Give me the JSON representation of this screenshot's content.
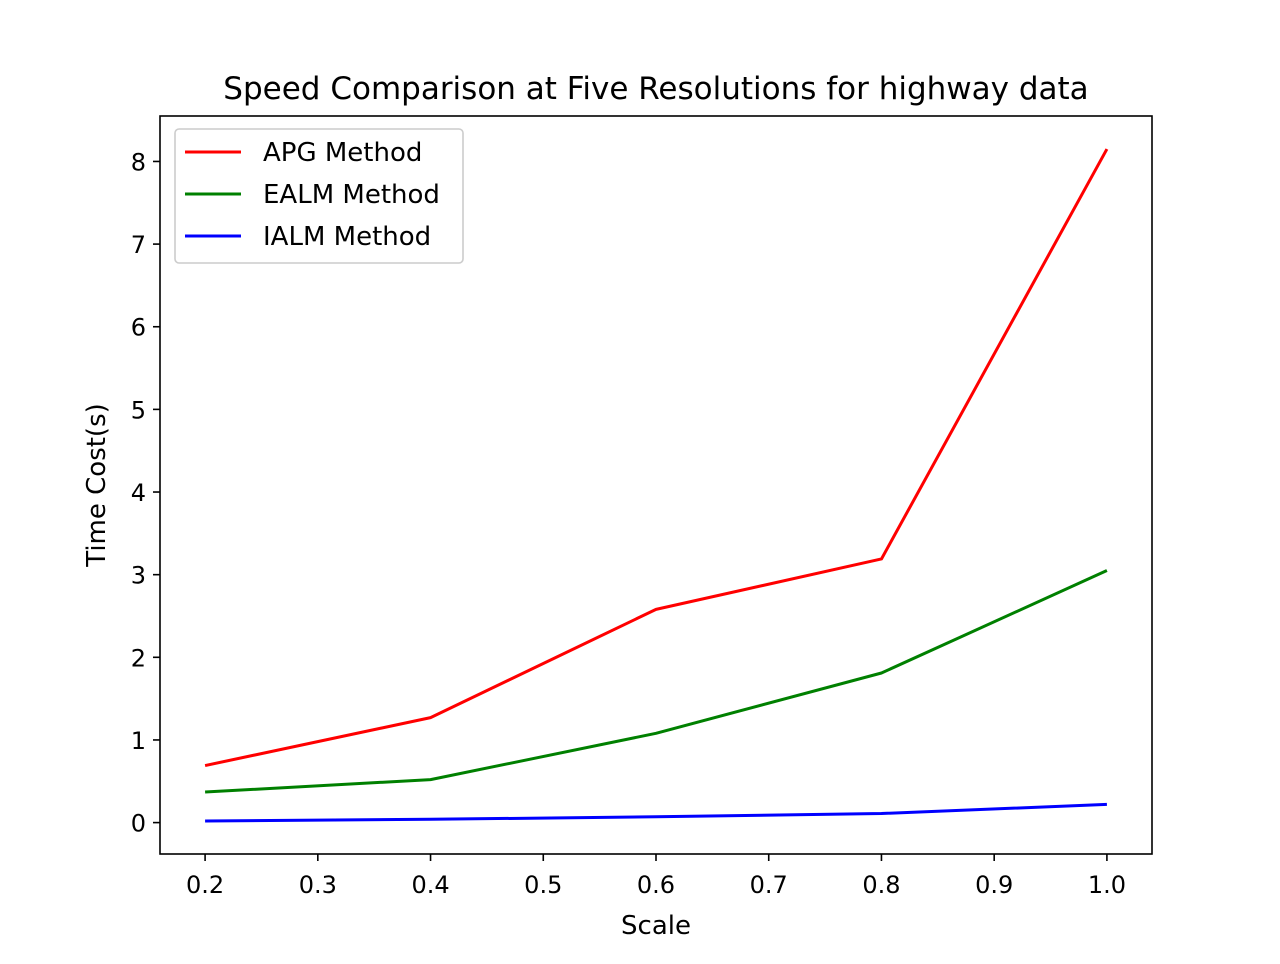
{
  "chart_data": {
    "type": "line",
    "title": "Speed Comparison at Five Resolutions for highway data",
    "xlabel": "Scale",
    "ylabel": "Time Cost(s)",
    "x": [
      0.2,
      0.4,
      0.6,
      0.8,
      1.0
    ],
    "xlim": [
      0.16,
      1.04
    ],
    "ylim": [
      -0.38,
      8.55
    ],
    "xticks": [
      0.2,
      0.3,
      0.4,
      0.5,
      0.6,
      0.7,
      0.8,
      0.9,
      1.0
    ],
    "xtick_labels": [
      "0.2",
      "0.3",
      "0.4",
      "0.5",
      "0.6",
      "0.7",
      "0.8",
      "0.9",
      "1.0"
    ],
    "yticks": [
      0,
      1,
      2,
      3,
      4,
      5,
      6,
      7,
      8
    ],
    "ytick_labels": [
      "0",
      "1",
      "2",
      "3",
      "4",
      "5",
      "6",
      "7",
      "8"
    ],
    "grid": false,
    "legend_position": "upper-left",
    "series": [
      {
        "name": "APG Method",
        "color": "#ff0000",
        "values": [
          0.69,
          1.27,
          2.58,
          3.19,
          8.15
        ]
      },
      {
        "name": "EALM Method",
        "color": "#008000",
        "values": [
          0.37,
          0.52,
          1.08,
          1.81,
          3.05
        ]
      },
      {
        "name": "IALM Method",
        "color": "#0000ff",
        "values": [
          0.02,
          0.04,
          0.07,
          0.11,
          0.22
        ]
      }
    ]
  }
}
